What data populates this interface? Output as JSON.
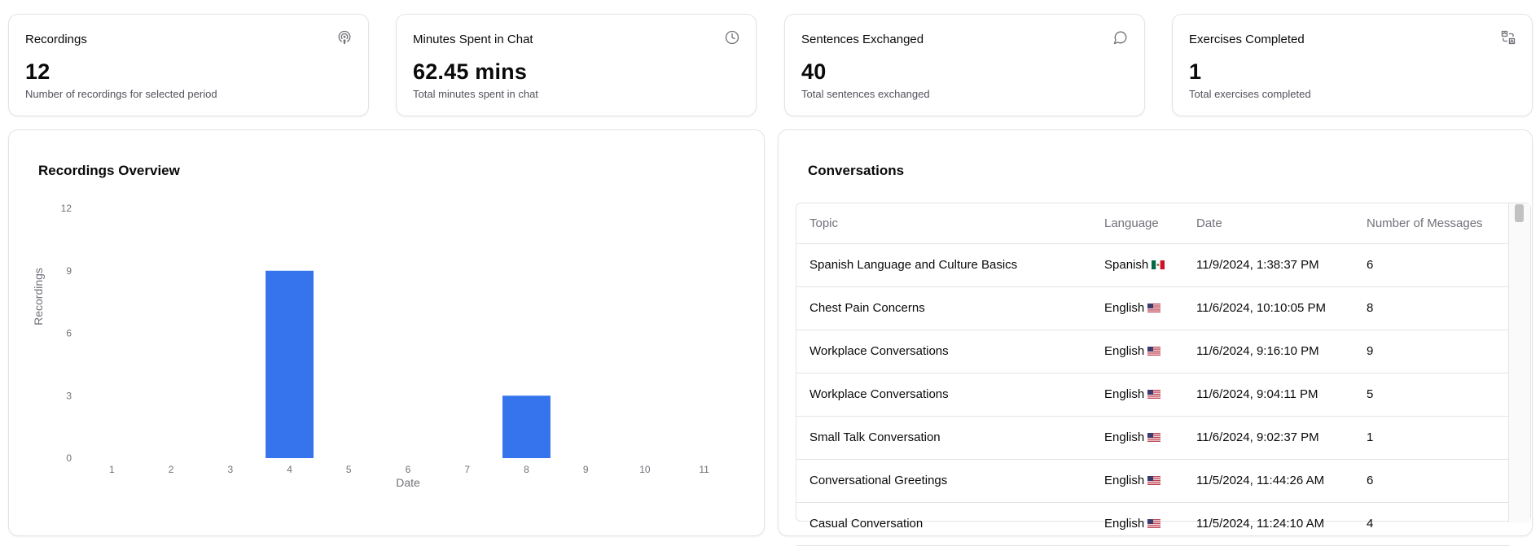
{
  "stats": [
    {
      "title": "Recordings",
      "value": "12",
      "desc": "Number of recordings for selected period",
      "icon": "podcast-icon"
    },
    {
      "title": "Minutes Spent in Chat",
      "value": "62.45 mins",
      "desc": "Total minutes spent in chat",
      "icon": "clock-icon"
    },
    {
      "title": "Sentences Exchanged",
      "value": "40",
      "desc": "Total sentences exchanged",
      "icon": "message-circle-icon"
    },
    {
      "title": "Exercises Completed",
      "value": "1",
      "desc": "Total exercises completed",
      "icon": "translate-icon"
    }
  ],
  "overview": {
    "title": "Recordings Overview"
  },
  "chart_data": {
    "type": "bar",
    "title": "Recordings Overview",
    "categories": [
      "1",
      "2",
      "3",
      "4",
      "5",
      "6",
      "7",
      "8",
      "9",
      "10",
      "11"
    ],
    "values": [
      0,
      0,
      0,
      9,
      0,
      0,
      0,
      3,
      0,
      0,
      0
    ],
    "xlabel": "Date",
    "ylabel": "Recordings",
    "yticks": [
      "0",
      "3",
      "6",
      "9",
      "12"
    ],
    "ylim": [
      0,
      12
    ],
    "grid": false,
    "bar_color": "#3574ed"
  },
  "conversations": {
    "title": "Conversations",
    "headers": [
      "Topic",
      "Language",
      "Date",
      "Number of Messages"
    ],
    "rows": [
      {
        "topic": "Spanish Language and Culture Basics",
        "language": "Spanish",
        "flag": "mexico-flag",
        "date": "11/9/2024, 1:38:37 PM",
        "messages": "6"
      },
      {
        "topic": "Chest Pain Concerns",
        "language": "English",
        "flag": "us-flag",
        "date": "11/6/2024, 10:10:05 PM",
        "messages": "8"
      },
      {
        "topic": "Workplace Conversations",
        "language": "English",
        "flag": "us-flag",
        "date": "11/6/2024, 9:16:10 PM",
        "messages": "9"
      },
      {
        "topic": "Workplace Conversations",
        "language": "English",
        "flag": "us-flag",
        "date": "11/6/2024, 9:04:11 PM",
        "messages": "5"
      },
      {
        "topic": "Small Talk Conversation",
        "language": "English",
        "flag": "us-flag",
        "date": "11/6/2024, 9:02:37 PM",
        "messages": "1"
      },
      {
        "topic": "Conversational Greetings",
        "language": "English",
        "flag": "us-flag",
        "date": "11/5/2024, 11:44:26 AM",
        "messages": "6"
      },
      {
        "topic": "Casual Conversation",
        "language": "English",
        "flag": "us-flag",
        "date": "11/5/2024, 11:24:10 AM",
        "messages": "4"
      }
    ]
  }
}
